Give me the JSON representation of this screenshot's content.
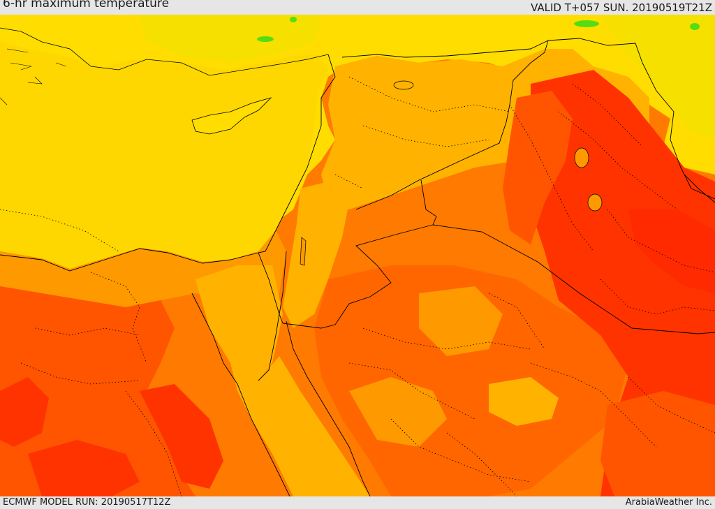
{
  "header": {
    "title": "6-hr maximum temperature",
    "valid": "VALID T+057 SUN. 20190519T21Z"
  },
  "footer": {
    "model_run": "ECMWF MODEL RUN: 20190517T12Z",
    "credit": "ArabiaWeather Inc."
  },
  "colors": {
    "sea": "#ffd700",
    "cool_land": "#f5e000",
    "yellow_band": "#ffdd00",
    "light_orange": "#ffb300",
    "orange": "#ff9900",
    "dark_orange": "#ff7a00",
    "red_orange": "#ff5500",
    "red": "#ff3300",
    "green": "#55dd11",
    "boundary": "#000000"
  }
}
